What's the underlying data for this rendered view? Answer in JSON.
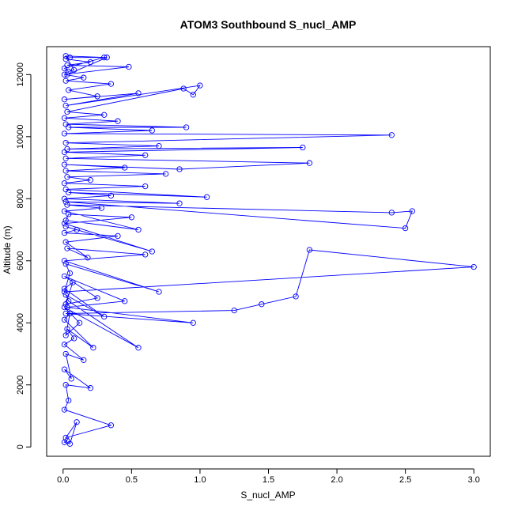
{
  "chart_data": {
    "type": "line",
    "title": "ATOM3 Southbound S_nucl_AMP",
    "xlabel": "S_nucl_AMP",
    "ylabel": "Altitude (m)",
    "xlim": [
      -0.12,
      3.12
    ],
    "ylim": [
      -300,
      12900
    ],
    "x_ticks": [
      0.0,
      0.5,
      1.0,
      1.5,
      2.0,
      2.5,
      3.0
    ],
    "x_tick_labels": [
      "0.0",
      "0.5",
      "1.0",
      "1.5",
      "2.0",
      "2.5",
      "3.0"
    ],
    "y_ticks": [
      0,
      2000,
      4000,
      6000,
      8000,
      10000,
      12000
    ],
    "y_tick_labels": [
      "0",
      "2000",
      "4000",
      "6000",
      "8000",
      "10000",
      "12000"
    ],
    "grid": false,
    "legend": "none",
    "marker": "open-circle",
    "colors": {
      "series": "#0000ff",
      "axis": "#000000",
      "background": "#ffffff"
    },
    "series": [
      {
        "x": [
          0.03,
          0.01,
          0.05,
          0.1,
          0.02,
          0.35,
          0.01,
          0.04,
          0.02,
          0.2,
          0.01,
          0.06,
          0.02,
          0.15,
          0.01,
          0.08,
          0.03,
          0.22,
          0.01,
          0.05,
          0.02,
          0.12,
          0.01,
          0.55,
          0.04,
          0.02,
          0.3,
          0.01,
          0.07,
          0.02,
          0.25,
          0.01,
          0.45,
          0.03,
          0.95,
          0.02,
          1.25,
          1.45,
          1.7,
          1.8,
          3.0,
          0.01,
          0.05,
          0.02,
          0.7,
          0.01,
          0.6,
          0.03,
          0.18,
          0.02,
          0.4,
          0.01,
          0.1,
          0.02,
          0.65,
          0.01,
          0.5,
          0.04,
          0.02,
          0.55,
          0.01,
          0.28,
          0.03,
          2.4,
          2.55,
          2.5,
          0.02,
          0.85,
          0.01,
          0.35,
          0.04,
          1.05,
          0.02,
          0.6,
          0.01,
          0.2,
          0.03,
          0.75,
          0.02,
          0.45,
          0.01,
          0.85,
          1.8,
          0.02,
          0.6,
          0.01,
          1.75,
          0.03,
          0.7,
          0.02,
          2.4,
          0.01,
          0.65,
          0.04,
          0.9,
          0.02,
          0.4,
          0.01,
          0.3,
          0.03,
          0.88,
          0.95,
          1.0,
          0.02,
          0.55,
          0.01,
          0.25,
          0.04,
          0.35,
          0.02,
          0.15,
          0.01,
          0.48,
          0.03,
          0.2,
          0.02,
          0.05,
          0.3,
          0.01,
          0.04,
          0.08,
          0.02,
          0.32,
          0.03
        ],
        "y": [
          200,
          150,
          100,
          800,
          300,
          700,
          1200,
          1500,
          2000,
          1900,
          2500,
          2200,
          3000,
          2800,
          3300,
          3500,
          3800,
          3200,
          4100,
          4300,
          3600,
          4000,
          4500,
          3200,
          4700,
          4900,
          4200,
          5100,
          5300,
          4600,
          4800,
          5500,
          4700,
          4500,
          4000,
          4300,
          4400,
          4600,
          4850,
          6350,
          5800,
          5000,
          5600,
          5900,
          5000,
          6000,
          6200,
          6400,
          6100,
          6600,
          6800,
          6900,
          7000,
          7100,
          6300,
          7200,
          7400,
          7500,
          7300,
          7000,
          7600,
          7700,
          7800,
          7550,
          7600,
          7050,
          7900,
          7850,
          8000,
          8100,
          8200,
          8050,
          8300,
          8400,
          8500,
          8600,
          8700,
          8800,
          8900,
          9000,
          9100,
          8950,
          9150,
          9300,
          9400,
          9500,
          9650,
          9600,
          9700,
          9800,
          10050,
          10100,
          10200,
          10300,
          10300,
          10400,
          10500,
          10600,
          10700,
          10800,
          11550,
          11350,
          11650,
          11000,
          11400,
          11200,
          11300,
          11500,
          11700,
          11800,
          11900,
          12000,
          12250,
          12300,
          12400,
          12500,
          12550,
          12550,
          12200,
          12100,
          12150,
          12600,
          12550,
          12000
        ]
      }
    ]
  }
}
